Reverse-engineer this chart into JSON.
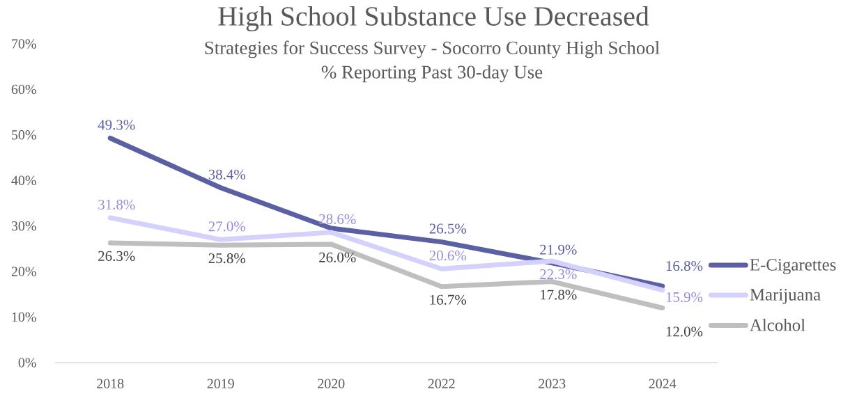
{
  "chart_data": {
    "type": "line",
    "title": "High School Substance Use Decreased",
    "subtitle": "Strategies for Success Survey - Socorro County High School",
    "annotations": [
      "% Reporting Past 30-day Use"
    ],
    "categories": [
      "2018",
      "2019",
      "2020",
      "2022",
      "2023",
      "2024"
    ],
    "series": [
      {
        "name": "E-Cigarettes",
        "color": "#5b5fa3",
        "values": [
          49.3,
          38.4,
          29.5,
          26.5,
          21.9,
          16.8
        ],
        "value_labels": [
          "49.3%",
          "38.4%",
          null,
          "26.5%",
          "21.9%",
          "16.8%"
        ]
      },
      {
        "name": "Marijuana",
        "color": "#d4d1fc",
        "values": [
          31.8,
          27.0,
          28.6,
          20.6,
          22.3,
          15.9
        ],
        "value_labels": [
          "31.8%",
          "27.0%",
          "28.6%",
          "20.6%",
          "22.3%",
          "15.9%"
        ]
      },
      {
        "name": "Alcohol",
        "color": "#bfbfbf",
        "values": [
          26.3,
          25.8,
          26.0,
          16.7,
          17.8,
          12.0
        ],
        "value_labels": [
          "26.3%",
          "25.8%",
          "26.0%",
          "16.7%",
          "17.8%",
          "12.0%"
        ]
      }
    ],
    "ylim": [
      0,
      70
    ],
    "yticks": [
      {
        "value": 0,
        "label": "0%"
      },
      {
        "value": 10,
        "label": "10%"
      },
      {
        "value": 20,
        "label": "20%"
      },
      {
        "value": 30,
        "label": "30%"
      },
      {
        "value": 40,
        "label": "40%"
      },
      {
        "value": 50,
        "label": "50%"
      },
      {
        "value": 60,
        "label": "60%"
      },
      {
        "value": 70,
        "label": "70%"
      }
    ],
    "legend": "right",
    "marker": "none",
    "line_style": "solid"
  }
}
